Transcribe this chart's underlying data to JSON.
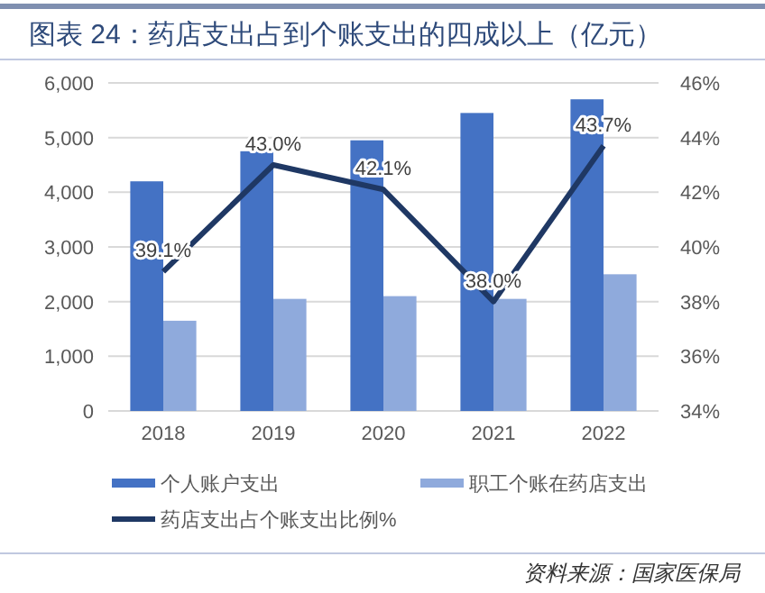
{
  "chart_data": {
    "type": "bar",
    "title": "图表 24：药店支出占到个账支出的四成以上（亿元）",
    "categories": [
      "2018",
      "2019",
      "2020",
      "2021",
      "2022"
    ],
    "series": [
      {
        "name": "个人账户支出",
        "color": "#4472c4",
        "values": [
          4200,
          4750,
          4950,
          5450,
          5700
        ]
      },
      {
        "name": "职工个账在药店支出",
        "color": "#8faadc",
        "values": [
          1650,
          2050,
          2100,
          2050,
          2500
        ]
      },
      {
        "name": "药店支出占个账支出比例%",
        "type": "line",
        "axis": "y2",
        "color": "#1f3864",
        "values": [
          39.1,
          43.0,
          42.1,
          38.0,
          43.7
        ],
        "value_labels": [
          "39.1%",
          "43.0%",
          "42.1%",
          "38.0%",
          "43.7%"
        ]
      }
    ],
    "ylim": [
      0,
      6000
    ],
    "yticks": [
      {
        "value": 0,
        "label": "0"
      },
      {
        "value": 1000,
        "label": "1,000"
      },
      {
        "value": 2000,
        "label": "2,000"
      },
      {
        "value": 3000,
        "label": "3,000"
      },
      {
        "value": 4000,
        "label": "4,000"
      },
      {
        "value": 5000,
        "label": "5,000"
      },
      {
        "value": 6000,
        "label": "6,000"
      }
    ],
    "y2lim": [
      34,
      46
    ],
    "y2ticks": [
      {
        "value": 34,
        "label": "34%"
      },
      {
        "value": 36,
        "label": "36%"
      },
      {
        "value": 38,
        "label": "38%"
      },
      {
        "value": 40,
        "label": "40%"
      },
      {
        "value": 42,
        "label": "42%"
      },
      {
        "value": 44,
        "label": "44%"
      },
      {
        "value": 46,
        "label": "46%"
      }
    ],
    "grid": "y",
    "legend": "bottom",
    "line_style": "solid",
    "marker": "none",
    "annotations": [
      "资料来源：国家医保局"
    ]
  }
}
